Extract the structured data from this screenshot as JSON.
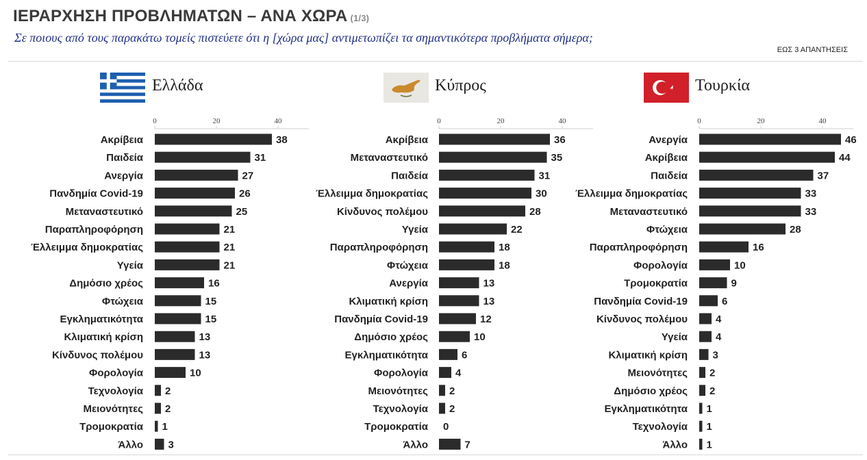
{
  "header": {
    "title": "ΙΕΡΑΡΧΗΣΗ ΠΡΟΒΛΗΜΑΤΩΝ – ΑΝΑ ΧΩΡΑ",
    "page": "(1/3)",
    "question": "Σε ποιους από τους παρακάτω τομείς πιστεύετε ότι η [χώρα μας] αντιμετωπίζει τα σημαντικότερα προβλήματα σήμερα;",
    "note": "ΕΩΣ 3 ΑΠΑΝΤΗΣΕΙΣ"
  },
  "colors": {
    "bar": "#2b2b2b",
    "title": "#3a3a3a",
    "question": "#1f2f86"
  },
  "chart_data": [
    {
      "type": "bar",
      "orientation": "horizontal",
      "country": "Ελλάδα",
      "flag": "greece-flag-icon",
      "xticks": [
        "0",
        "20",
        "40"
      ],
      "xlim": [
        0,
        50
      ],
      "categories": [
        "Ακρίβεια",
        "Παιδεία",
        "Ανεργία",
        "Πανδημία Covid-19",
        "Μεταναστευτικό",
        "Παραπληροφόρηση",
        "Έλλειμμα δημοκρατίας",
        "Υγεία",
        "Δημόσιο χρέος",
        "Φτώχεια",
        "Εγκληματικότητα",
        "Κλιματική κρίση",
        "Κίνδυνος πολέμου",
        "Φορολογία",
        "Τεχνολογία",
        "Μειονότητες",
        "Τρομοκρατία",
        "Άλλο"
      ],
      "values": [
        38,
        31,
        27,
        26,
        25,
        21,
        21,
        21,
        16,
        15,
        15,
        13,
        13,
        10,
        2,
        2,
        1,
        3
      ],
      "value_labels": [
        "38",
        "31",
        "27",
        "26",
        "25",
        "21",
        "21",
        "21",
        "16",
        "15",
        "15",
        "13",
        "13",
        "10",
        "2",
        "2",
        "1",
        "3"
      ]
    },
    {
      "type": "bar",
      "orientation": "horizontal",
      "country": "Κύπρος",
      "flag": "cyprus-flag-icon",
      "xticks": [
        "0",
        "20",
        "40"
      ],
      "xlim": [
        0,
        50
      ],
      "categories": [
        "Ακρίβεια",
        "Μεταναστευτικό",
        "Παιδεία",
        "Έλλειμμα δημοκρατίας",
        "Κίνδυνος πολέμου",
        "Υγεία",
        "Παραπληροφόρηση",
        "Φτώχεια",
        "Ανεργία",
        "Κλιματική κρίση",
        "Πανδημία Covid-19",
        "Δημόσιο χρέος",
        "Εγκληματικότητα",
        "Φορολογία",
        "Μειονότητες",
        "Τεχνολογία",
        "Τρομοκρατία",
        "Άλλο"
      ],
      "values": [
        36,
        35,
        31,
        30,
        28,
        22,
        18,
        18,
        13,
        13,
        12,
        10,
        6,
        4,
        2,
        2,
        0,
        7
      ],
      "value_labels": [
        "36",
        "35",
        "31",
        "30",
        "28",
        "22",
        "18",
        "18",
        "13",
        "13",
        "12",
        "10",
        "6",
        "4",
        "2",
        "2",
        "0",
        "7"
      ]
    },
    {
      "type": "bar",
      "orientation": "horizontal",
      "country": "Τουρκία",
      "flag": "turkey-flag-icon",
      "xticks": [
        "0",
        "20",
        "40"
      ],
      "xlim": [
        0,
        50
      ],
      "categories": [
        "Ανεργία",
        "Ακρίβεια",
        "Παιδεία",
        "Έλλειμμα δημοκρατίας",
        "Μεταναστευτικό",
        "Φτώχεια",
        "Παραπληροφόρηση",
        "Φορολογία",
        "Τρομοκρατία",
        "Πανδημία Covid-19",
        "Κίνδυνος πολέμου",
        "Υγεία",
        "Κλιματική κρίση",
        "Μειονότητες",
        "Δημόσιο χρέος",
        "Εγκληματικότητα",
        "Τεχνολογία",
        "Άλλο"
      ],
      "values": [
        46,
        44,
        37,
        33,
        33,
        28,
        16,
        10,
        9,
        6,
        4,
        4,
        3,
        2,
        2,
        1,
        1,
        1
      ],
      "value_labels": [
        "46",
        "44",
        "37",
        "33",
        "33",
        "28",
        "16",
        "10",
        "9",
        "6",
        "4",
        "4",
        "3",
        "2",
        "2",
        "1",
        "1",
        "1"
      ]
    }
  ]
}
